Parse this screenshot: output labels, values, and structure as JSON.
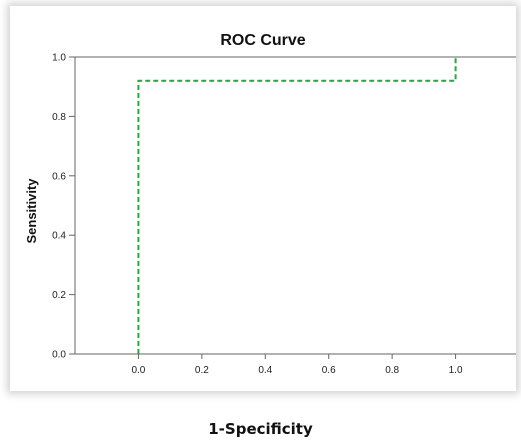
{
  "chart_data": {
    "type": "line",
    "title": "ROC Curve",
    "xlabel": "1-Specificity",
    "ylabel": "Sensitivity",
    "xlim": [
      -0.2,
      1.2
    ],
    "ylim": [
      0.0,
      1.0
    ],
    "x_ticks": [
      "0.0",
      "0.2",
      "0.4",
      "0.6",
      "0.8",
      "1.0"
    ],
    "x_tick_values": [
      0.0,
      0.2,
      0.4,
      0.6,
      0.8,
      1.0
    ],
    "y_ticks": [
      "0.0",
      "0.2",
      "0.4",
      "0.6",
      "0.8",
      "1.0"
    ],
    "y_tick_values": [
      0.0,
      0.2,
      0.4,
      0.6,
      0.8,
      1.0
    ],
    "grid": false,
    "series": [
      {
        "color": "#22aa3a",
        "style": "dashed",
        "x": [
          0.0,
          0.0,
          1.0,
          1.0
        ],
        "y": [
          0.0,
          0.92,
          0.92,
          1.0
        ]
      }
    ]
  }
}
